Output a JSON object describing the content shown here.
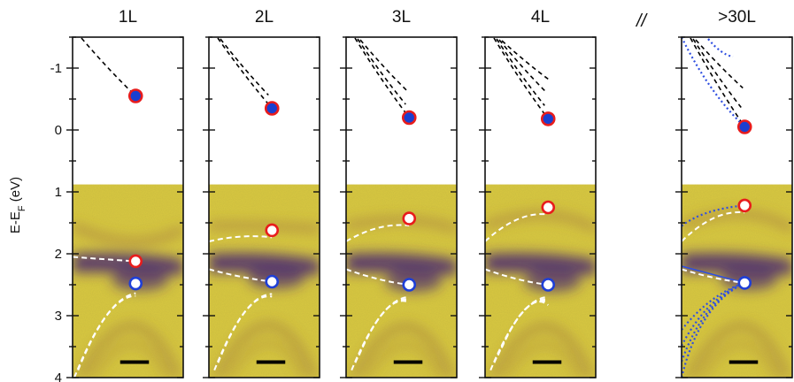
{
  "chart_data": {
    "type": "scatter",
    "ylabel_parts": {
      "main": "E-E",
      "sub": "F",
      "unit": " (eV)"
    },
    "ylim": [
      -1.5,
      4.0
    ],
    "yticks": [
      -1,
      0,
      1,
      2,
      3,
      4
    ],
    "ytick_labels": [
      "-1",
      "0",
      "1",
      "2",
      "3",
      "4"
    ],
    "break_mark": "//",
    "colors": {
      "marker_edge": "#e81c1c",
      "marker_fill_unocc": "#1a3fd0",
      "marker_edge_vb": "#1f3fd6",
      "background_yellow": "#d8c840",
      "band_purple": "#4a2a70",
      "guide_dash": "#000000",
      "guide_white": "#ffffff",
      "guide_blue_dotted": "#2f4fe0",
      "scale_bar": "#000000"
    },
    "panels": [
      {
        "title": "1L",
        "conduction_band": {
          "E": -0.55
        },
        "occupied_upper": {
          "E": 2.12
        },
        "occupied_lower": {
          "E": 2.48
        },
        "dashed_guides": 1,
        "white_guides": 3
      },
      {
        "title": "2L",
        "conduction_band": {
          "E": -0.35
        },
        "occupied_upper": {
          "E": 1.62
        },
        "occupied_lower": {
          "E": 2.45
        },
        "dashed_guides": 2,
        "white_guides": 4
      },
      {
        "title": "3L",
        "conduction_band": {
          "E": -0.2
        },
        "occupied_upper": {
          "E": 1.43
        },
        "occupied_lower": {
          "E": 2.5
        },
        "dashed_guides": 3,
        "white_guides": 5
      },
      {
        "title": "4L",
        "conduction_band": {
          "E": -0.18
        },
        "occupied_upper": {
          "E": 1.25
        },
        "occupied_lower": {
          "E": 2.5
        },
        "dashed_guides": 4,
        "white_guides": 6
      },
      {
        "title": ">30L",
        "conduction_band": {
          "E": -0.05
        },
        "occupied_upper": {
          "E": 1.22
        },
        "occupied_lower": {
          "E": 2.47
        },
        "dashed_guides": 3,
        "white_guides": 2,
        "blue_guides": 6
      }
    ]
  }
}
